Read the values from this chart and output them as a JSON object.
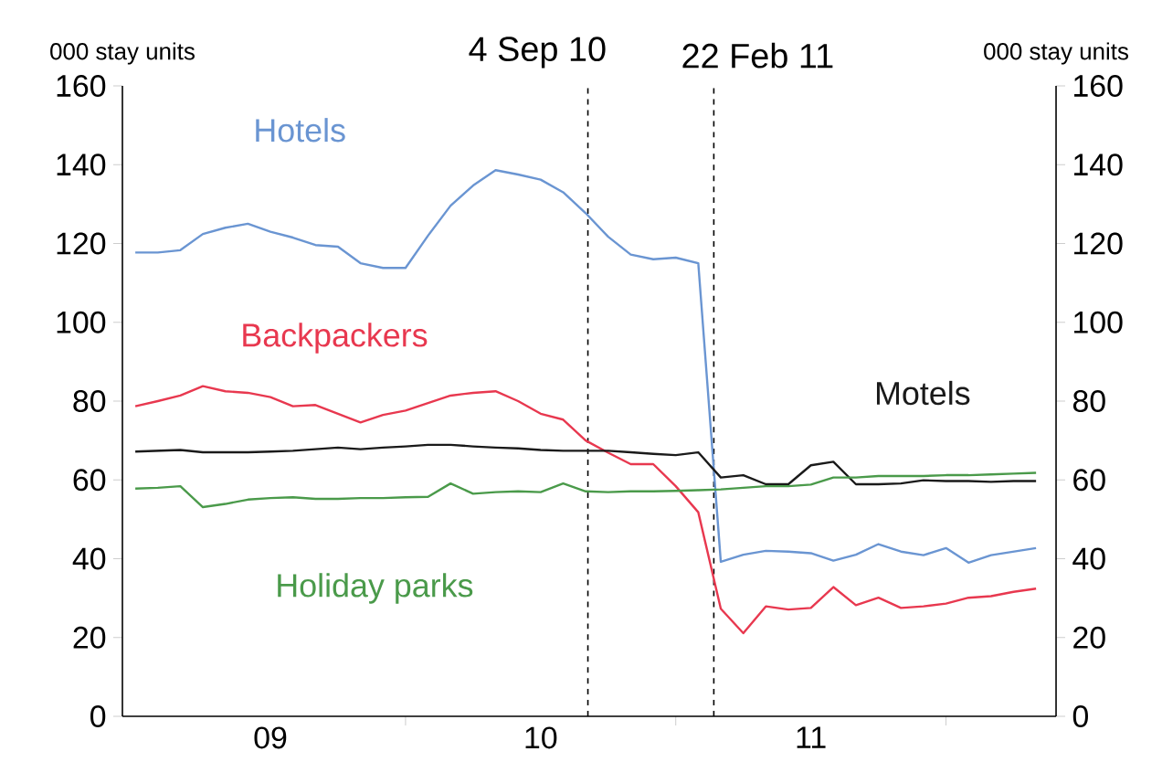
{
  "chart_data": {
    "type": "line",
    "ylabel": "000 stay units",
    "y2label": "000 stay units",
    "x": [
      "2009-01",
      "2009-02",
      "2009-03",
      "2009-04",
      "2009-05",
      "2009-06",
      "2009-07",
      "2009-08",
      "2009-09",
      "2009-10",
      "2009-11",
      "2009-12",
      "2010-01",
      "2010-02",
      "2010-03",
      "2010-04",
      "2010-05",
      "2010-06",
      "2010-07",
      "2010-08",
      "2010-09",
      "2010-10",
      "2010-11",
      "2010-12",
      "2011-01",
      "2011-02",
      "2011-03",
      "2011-04",
      "2011-05",
      "2011-06",
      "2011-07",
      "2011-08",
      "2011-09",
      "2011-10",
      "2011-11",
      "2011-12",
      "2012-01",
      "2012-02",
      "2012-03",
      "2012-04",
      "2012-05"
    ],
    "series": [
      {
        "name": "Hotels",
        "color": "#6a95d2",
        "values": [
          117.7,
          117.7,
          118.3,
          122.4,
          124,
          125,
          123,
          121.5,
          119.6,
          119.2,
          115,
          113.8,
          113.8,
          122,
          129.6,
          134.7,
          138.6,
          137.5,
          136.2,
          133,
          127.7,
          121.7,
          117.2,
          116,
          116.4,
          115,
          39.2,
          41,
          42,
          41.8,
          41.4,
          39.5,
          41,
          43.7,
          41.8,
          40.9,
          42.7,
          39,
          40.9,
          41.8,
          42.7
        ]
      },
      {
        "name": "Backpackers",
        "color": "#e8384f",
        "values": [
          78.7,
          80,
          81.4,
          83.8,
          82.5,
          82.1,
          81,
          78.7,
          79,
          76.8,
          74.6,
          76.5,
          77.6,
          79.5,
          81.4,
          82.1,
          82.5,
          80,
          76.8,
          75.3,
          70,
          66.9,
          64,
          64,
          58.4,
          51.8,
          27.3,
          21.1,
          27.9,
          27.1,
          27.5,
          32.8,
          28.2,
          30.1,
          27.5,
          27.9,
          28.6,
          30.1,
          30.5,
          31.6,
          32.4
        ]
      },
      {
        "name": "Motels",
        "color": "#1a1a1a",
        "values": [
          67.2,
          67.4,
          67.6,
          67,
          67,
          67,
          67.2,
          67.4,
          67.8,
          68.2,
          67.8,
          68.2,
          68.5,
          68.9,
          68.9,
          68.5,
          68.2,
          68,
          67.6,
          67.4,
          67.4,
          67.4,
          67,
          66.6,
          66.3,
          67,
          60.6,
          61.2,
          58.9,
          58.9,
          63.7,
          64.6,
          58.9,
          58.9,
          59.1,
          59.9,
          59.7,
          59.7,
          59.5,
          59.7,
          59.7
        ]
      },
      {
        "name": "Holiday parks",
        "color": "#4a9a4a",
        "values": [
          57.8,
          58,
          58.4,
          53.1,
          53.9,
          55,
          55.4,
          55.6,
          55.2,
          55.2,
          55.4,
          55.4,
          55.6,
          55.7,
          59.1,
          56.5,
          56.9,
          57.1,
          56.9,
          59.1,
          57.1,
          56.9,
          57.1,
          57.1,
          57.2,
          57.4,
          57.6,
          58,
          58.4,
          58.4,
          58.8,
          60.6,
          60.6,
          61,
          61,
          61,
          61.2,
          61.2,
          61.4,
          61.6,
          61.8
        ]
      }
    ],
    "xlim": [
      "2008-12-14",
      "2012-05-28"
    ],
    "xticks": [
      {
        "value": "2009-07-01",
        "label": "09"
      },
      {
        "value": "2010-01-01",
        "label": null
      },
      {
        "value": "2010-07-01",
        "label": "10"
      },
      {
        "value": "2011-01-01",
        "label": null
      },
      {
        "value": "2011-07-01",
        "label": "11"
      },
      {
        "value": "2012-01-01",
        "label": null
      }
    ],
    "ylim": [
      0,
      160
    ],
    "yticks": [
      0,
      20,
      40,
      60,
      80,
      100,
      120,
      140,
      160
    ],
    "y2lim": [
      0,
      160
    ],
    "y2ticks": [
      0,
      20,
      40,
      60,
      80,
      100,
      120,
      140,
      160
    ],
    "ref_lines": [
      {
        "axis": "x",
        "value": "2010-09-04",
        "label": "4 Sep 10",
        "color": "#000000",
        "line_style": "dashed"
      },
      {
        "axis": "x",
        "value": "2011-02-22",
        "label": "22 Feb 11",
        "color": "#000000",
        "line_style": "dashed"
      }
    ],
    "grid": false,
    "marker": "none",
    "line_style": "solid"
  }
}
